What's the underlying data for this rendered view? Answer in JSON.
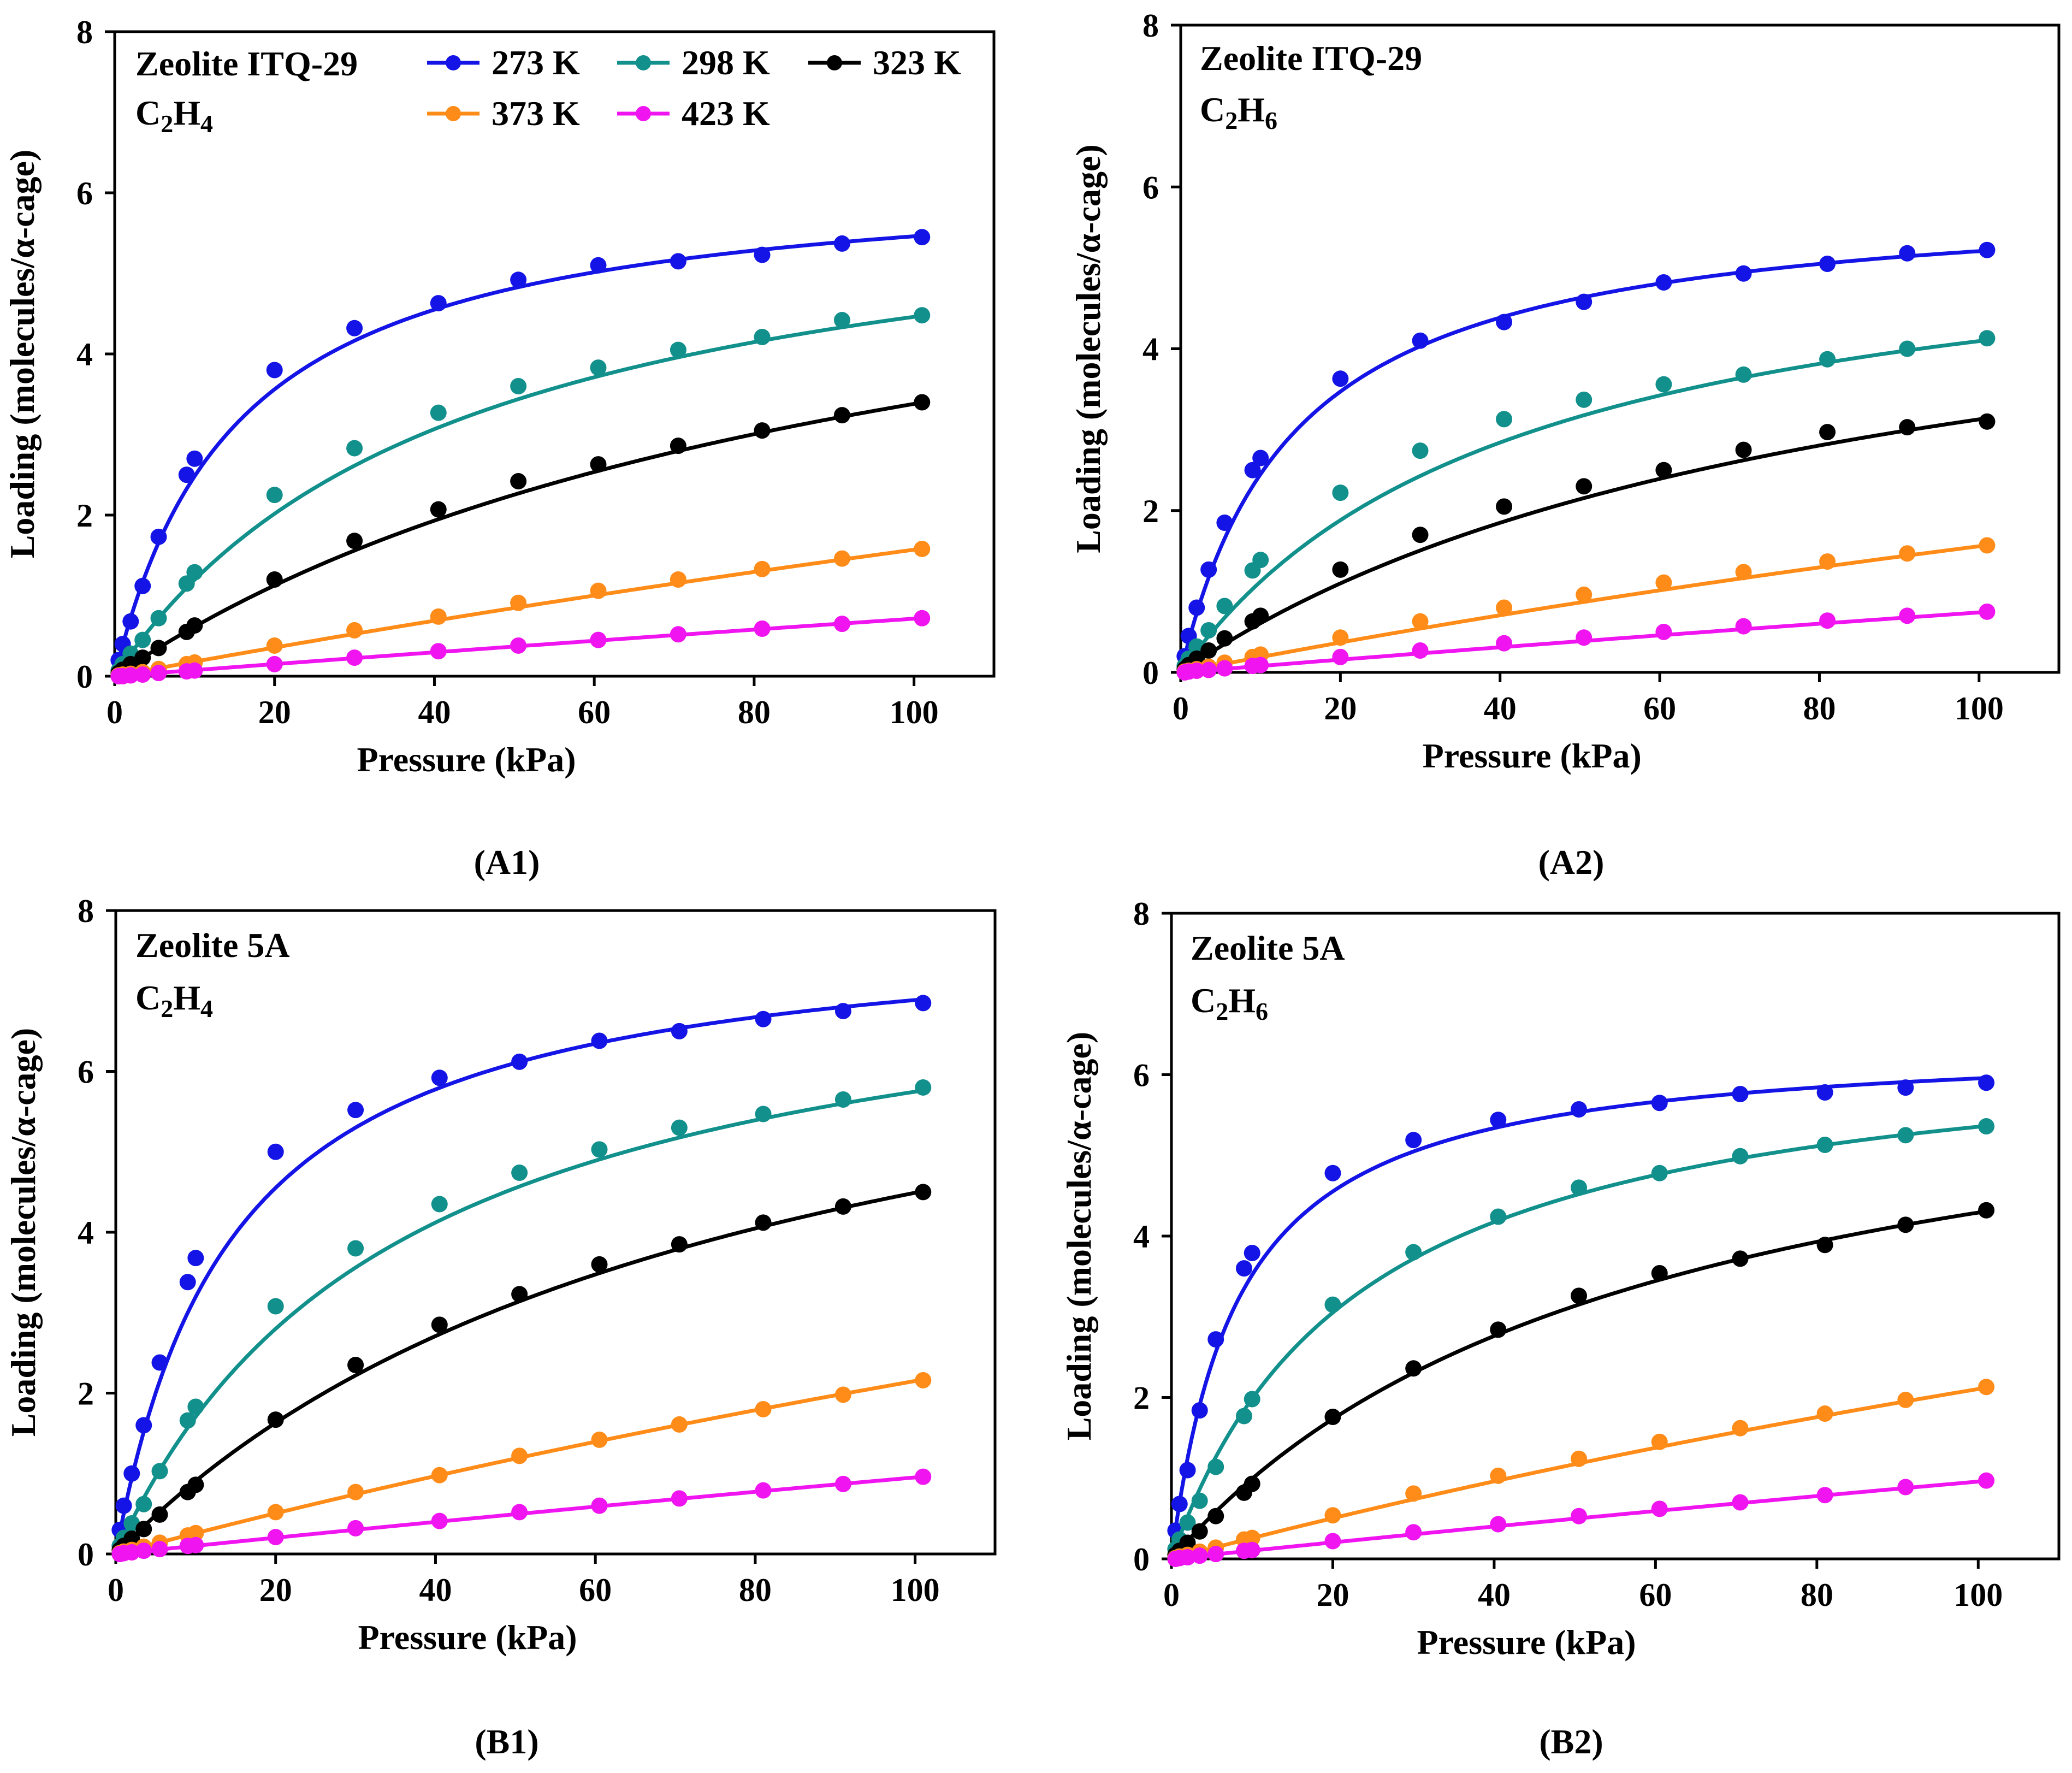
{
  "legend": [
    {
      "name": "273 K",
      "color": "#1414e6"
    },
    {
      "name": "298 K",
      "color": "#12908c"
    },
    {
      "name": "323 K",
      "color": "#000000"
    },
    {
      "name": "373 K",
      "color": "#ff8c19"
    },
    {
      "name": "423 K",
      "color": "#f014f0"
    }
  ],
  "chart_data": [
    {
      "type": "scatter",
      "panel_label": "(A1)",
      "title": "Zeolite ITQ-29",
      "adsorbate": {
        "base": "C",
        "sub1": "2",
        "mid": "H",
        "sub2": "4"
      },
      "xlabel": "Pressure (kPa)",
      "ylabel": "Loading (molecules/α-cage)",
      "xlim": [
        0,
        110
      ],
      "ylim": [
        0,
        8
      ],
      "xticks": [
        0,
        20,
        40,
        60,
        80,
        100
      ],
      "yticks": [
        0,
        2,
        4,
        6,
        8
      ],
      "x": [
        0.5,
        1.0,
        2.0,
        3.5,
        5.5,
        9.0,
        10.0,
        20.0,
        30.0,
        40.5,
        50.5,
        60.5,
        70.5,
        81.0,
        91.0,
        101.0
      ],
      "series": [
        {
          "name": "273 K",
          "color": "#1414e6",
          "values": [
            0.2,
            0.4,
            0.68,
            1.12,
            1.73,
            2.5,
            2.7,
            3.8,
            4.32,
            4.63,
            4.92,
            5.1,
            5.15,
            5.23,
            5.37,
            5.45
          ],
          "fit": {
            "qsat": 6.3,
            "b": 0.065
          }
        },
        {
          "name": "298 K",
          "color": "#12908c",
          "values": [
            0.07,
            0.15,
            0.28,
            0.45,
            0.72,
            1.15,
            1.29,
            2.25,
            2.83,
            3.27,
            3.6,
            3.83,
            4.05,
            4.21,
            4.42,
            4.48
          ],
          "fit": {
            "qsat": 6.4,
            "b": 0.023
          }
        },
        {
          "name": "323 K",
          "color": "#000000",
          "values": [
            0.04,
            0.08,
            0.15,
            0.23,
            0.35,
            0.55,
            0.63,
            1.2,
            1.68,
            2.07,
            2.42,
            2.63,
            2.86,
            3.05,
            3.24,
            3.4
          ],
          "fit": {
            "qsat": 6.76,
            "b": 0.01
          }
        },
        {
          "name": "373 K",
          "color": "#ff8c19",
          "values": [
            0.01,
            0.02,
            0.03,
            0.05,
            0.09,
            0.15,
            0.17,
            0.38,
            0.57,
            0.74,
            0.91,
            1.06,
            1.2,
            1.33,
            1.46,
            1.58
          ],
          "fit": {
            "qsat": 10.7,
            "b": 0.00172
          }
        },
        {
          "name": "423 K",
          "color": "#f014f0",
          "values": [
            0.0,
            0.0,
            0.01,
            0.02,
            0.04,
            0.06,
            0.07,
            0.15,
            0.23,
            0.31,
            0.38,
            0.45,
            0.52,
            0.59,
            0.65,
            0.72
          ],
          "fit": {
            "qsat": 11.7,
            "b": 0.00065
          }
        }
      ]
    },
    {
      "type": "scatter",
      "panel_label": "(A2)",
      "title": "Zeolite ITQ-29",
      "adsorbate": {
        "base": "C",
        "sub1": "2",
        "mid": "H",
        "sub2": "6"
      },
      "xlabel": "Pressure (kPa)",
      "ylabel": "Loading (molecules/α-cage)",
      "xlim": [
        0,
        110
      ],
      "ylim": [
        0,
        8
      ],
      "xticks": [
        0,
        20,
        40,
        60,
        80,
        100
      ],
      "yticks": [
        0,
        2,
        4,
        6,
        8
      ],
      "x": [
        0.5,
        1.0,
        2.0,
        3.5,
        5.5,
        9.0,
        10.0,
        20.0,
        30.0,
        40.5,
        50.5,
        60.5,
        70.5,
        81.0,
        91.0,
        101.0
      ],
      "series": [
        {
          "name": "273 K",
          "color": "#1414e6",
          "values": [
            0.2,
            0.45,
            0.8,
            1.27,
            1.85,
            2.5,
            2.65,
            3.63,
            4.1,
            4.33,
            4.58,
            4.82,
            4.93,
            5.05,
            5.18,
            5.22
          ],
          "fit": {
            "qsat": 5.95,
            "b": 0.07
          }
        },
        {
          "name": "298 K",
          "color": "#12908c",
          "values": [
            0.08,
            0.17,
            0.32,
            0.52,
            0.82,
            1.26,
            1.39,
            2.22,
            2.74,
            3.13,
            3.37,
            3.56,
            3.68,
            3.87,
            4.0,
            4.13
          ],
          "fit": {
            "qsat": 5.8,
            "b": 0.024
          }
        },
        {
          "name": "323 K",
          "color": "#000000",
          "values": [
            0.04,
            0.09,
            0.17,
            0.27,
            0.42,
            0.63,
            0.7,
            1.27,
            1.7,
            2.05,
            2.3,
            2.5,
            2.75,
            2.97,
            3.03,
            3.1
          ],
          "fit": {
            "qsat": 5.8,
            "b": 0.0117
          }
        },
        {
          "name": "373 K",
          "color": "#ff8c19",
          "values": [
            0.01,
            0.02,
            0.04,
            0.07,
            0.12,
            0.19,
            0.22,
            0.43,
            0.63,
            0.8,
            0.96,
            1.11,
            1.24,
            1.37,
            1.47,
            1.57
          ],
          "fit": {
            "qsat": 8.0,
            "b": 0.00242
          }
        },
        {
          "name": "423 K",
          "color": "#f014f0",
          "values": [
            0.0,
            0.01,
            0.02,
            0.03,
            0.05,
            0.08,
            0.09,
            0.19,
            0.27,
            0.36,
            0.43,
            0.5,
            0.57,
            0.64,
            0.7,
            0.75
          ],
          "fit": {
            "qsat": 10.0,
            "b": 0.0008
          }
        }
      ]
    },
    {
      "type": "scatter",
      "panel_label": "(B1)",
      "title": "Zeolite 5A",
      "adsorbate": {
        "base": "C",
        "sub1": "2",
        "mid": "H",
        "sub2": "4"
      },
      "xlabel": "Pressure (kPa)",
      "ylabel": "Loading (molecules/α-cage)",
      "xlim": [
        0,
        110
      ],
      "ylim": [
        0,
        8
      ],
      "xticks": [
        0,
        20,
        40,
        60,
        80,
        100
      ],
      "yticks": [
        0,
        2,
        4,
        6,
        8
      ],
      "x": [
        0.5,
        1.0,
        2.0,
        3.5,
        5.5,
        9.0,
        10.0,
        20.0,
        30.0,
        40.5,
        50.5,
        60.5,
        70.5,
        81.0,
        91.0,
        101.0
      ],
      "series": [
        {
          "name": "273 K",
          "color": "#1414e6",
          "values": [
            0.3,
            0.6,
            1.0,
            1.6,
            2.38,
            3.38,
            3.68,
            5.0,
            5.52,
            5.92,
            6.12,
            6.38,
            6.5,
            6.65,
            6.75,
            6.85
          ],
          "fit": {
            "qsat": 7.9,
            "b": 0.068
          }
        },
        {
          "name": "298 K",
          "color": "#12908c",
          "values": [
            0.1,
            0.2,
            0.38,
            0.62,
            1.03,
            1.66,
            1.83,
            3.08,
            3.8,
            4.35,
            4.74,
            5.03,
            5.3,
            5.47,
            5.65,
            5.8
          ],
          "fit": {
            "qsat": 7.8,
            "b": 0.028
          }
        },
        {
          "name": "323 K",
          "color": "#000000",
          "values": [
            0.05,
            0.1,
            0.19,
            0.31,
            0.49,
            0.77,
            0.86,
            1.67,
            2.35,
            2.85,
            3.23,
            3.6,
            3.85,
            4.12,
            4.32,
            4.5
          ],
          "fit": {
            "qsat": 8.0,
            "b": 0.0128
          }
        },
        {
          "name": "373 K",
          "color": "#ff8c19",
          "values": [
            0.01,
            0.03,
            0.05,
            0.09,
            0.14,
            0.23,
            0.26,
            0.52,
            0.77,
            0.98,
            1.22,
            1.42,
            1.61,
            1.8,
            1.98,
            2.16
          ],
          "fit": {
            "qsat": 11.5,
            "b": 0.0023
          }
        },
        {
          "name": "423 K",
          "color": "#f014f0",
          "values": [
            0.0,
            0.01,
            0.02,
            0.04,
            0.06,
            0.1,
            0.11,
            0.21,
            0.32,
            0.41,
            0.52,
            0.6,
            0.69,
            0.79,
            0.87,
            0.96
          ],
          "fit": {
            "qsat": 13.0,
            "b": 0.00079
          }
        }
      ]
    },
    {
      "type": "scatter",
      "panel_label": "(B2)",
      "title": "Zeolite 5A",
      "adsorbate": {
        "base": "C",
        "sub1": "2",
        "mid": "H",
        "sub2": "6"
      },
      "xlabel": "Pressure (kPa)",
      "ylabel": "Loading (molecules/α-cage)",
      "xlim": [
        0,
        110
      ],
      "ylim": [
        0,
        8
      ],
      "xticks": [
        0,
        20,
        40,
        60,
        80,
        100
      ],
      "yticks": [
        0,
        2,
        4,
        6,
        8
      ],
      "x": [
        0.5,
        1.0,
        2.0,
        3.5,
        5.5,
        9.0,
        10.0,
        20.0,
        30.0,
        40.5,
        50.5,
        60.5,
        70.5,
        81.0,
        91.0,
        101.0
      ],
      "series": [
        {
          "name": "273 K",
          "color": "#1414e6",
          "values": [
            0.35,
            0.68,
            1.1,
            1.84,
            2.72,
            3.6,
            3.79,
            4.78,
            5.19,
            5.44,
            5.57,
            5.65,
            5.76,
            5.78,
            5.84,
            5.9
          ],
          "fit": {
            "qsat": 6.45,
            "b": 0.12
          }
        },
        {
          "name": "298 K",
          "color": "#12908c",
          "values": [
            0.12,
            0.24,
            0.45,
            0.72,
            1.14,
            1.77,
            1.98,
            3.15,
            3.8,
            4.24,
            4.6,
            4.78,
            4.99,
            5.13,
            5.25,
            5.36
          ],
          "fit": {
            "qsat": 6.6,
            "b": 0.043
          }
        },
        {
          "name": "323 K",
          "color": "#000000",
          "values": [
            0.05,
            0.1,
            0.2,
            0.34,
            0.53,
            0.82,
            0.93,
            1.76,
            2.36,
            2.84,
            3.26,
            3.54,
            3.72,
            3.89,
            4.14,
            4.32
          ],
          "fit": {
            "qsat": 6.8,
            "b": 0.0171
          }
        },
        {
          "name": "373 K",
          "color": "#ff8c19",
          "values": [
            0.01,
            0.03,
            0.05,
            0.09,
            0.14,
            0.24,
            0.26,
            0.54,
            0.81,
            1.03,
            1.24,
            1.45,
            1.62,
            1.8,
            1.97,
            2.13
          ],
          "fit": {
            "qsat": 10.2,
            "b": 0.0026
          }
        },
        {
          "name": "423 K",
          "color": "#f014f0",
          "values": [
            0.0,
            0.01,
            0.02,
            0.04,
            0.06,
            0.1,
            0.11,
            0.22,
            0.33,
            0.43,
            0.53,
            0.62,
            0.7,
            0.79,
            0.89,
            0.97
          ],
          "fit": {
            "qsat": 12.5,
            "b": 0.00083
          }
        }
      ]
    }
  ]
}
